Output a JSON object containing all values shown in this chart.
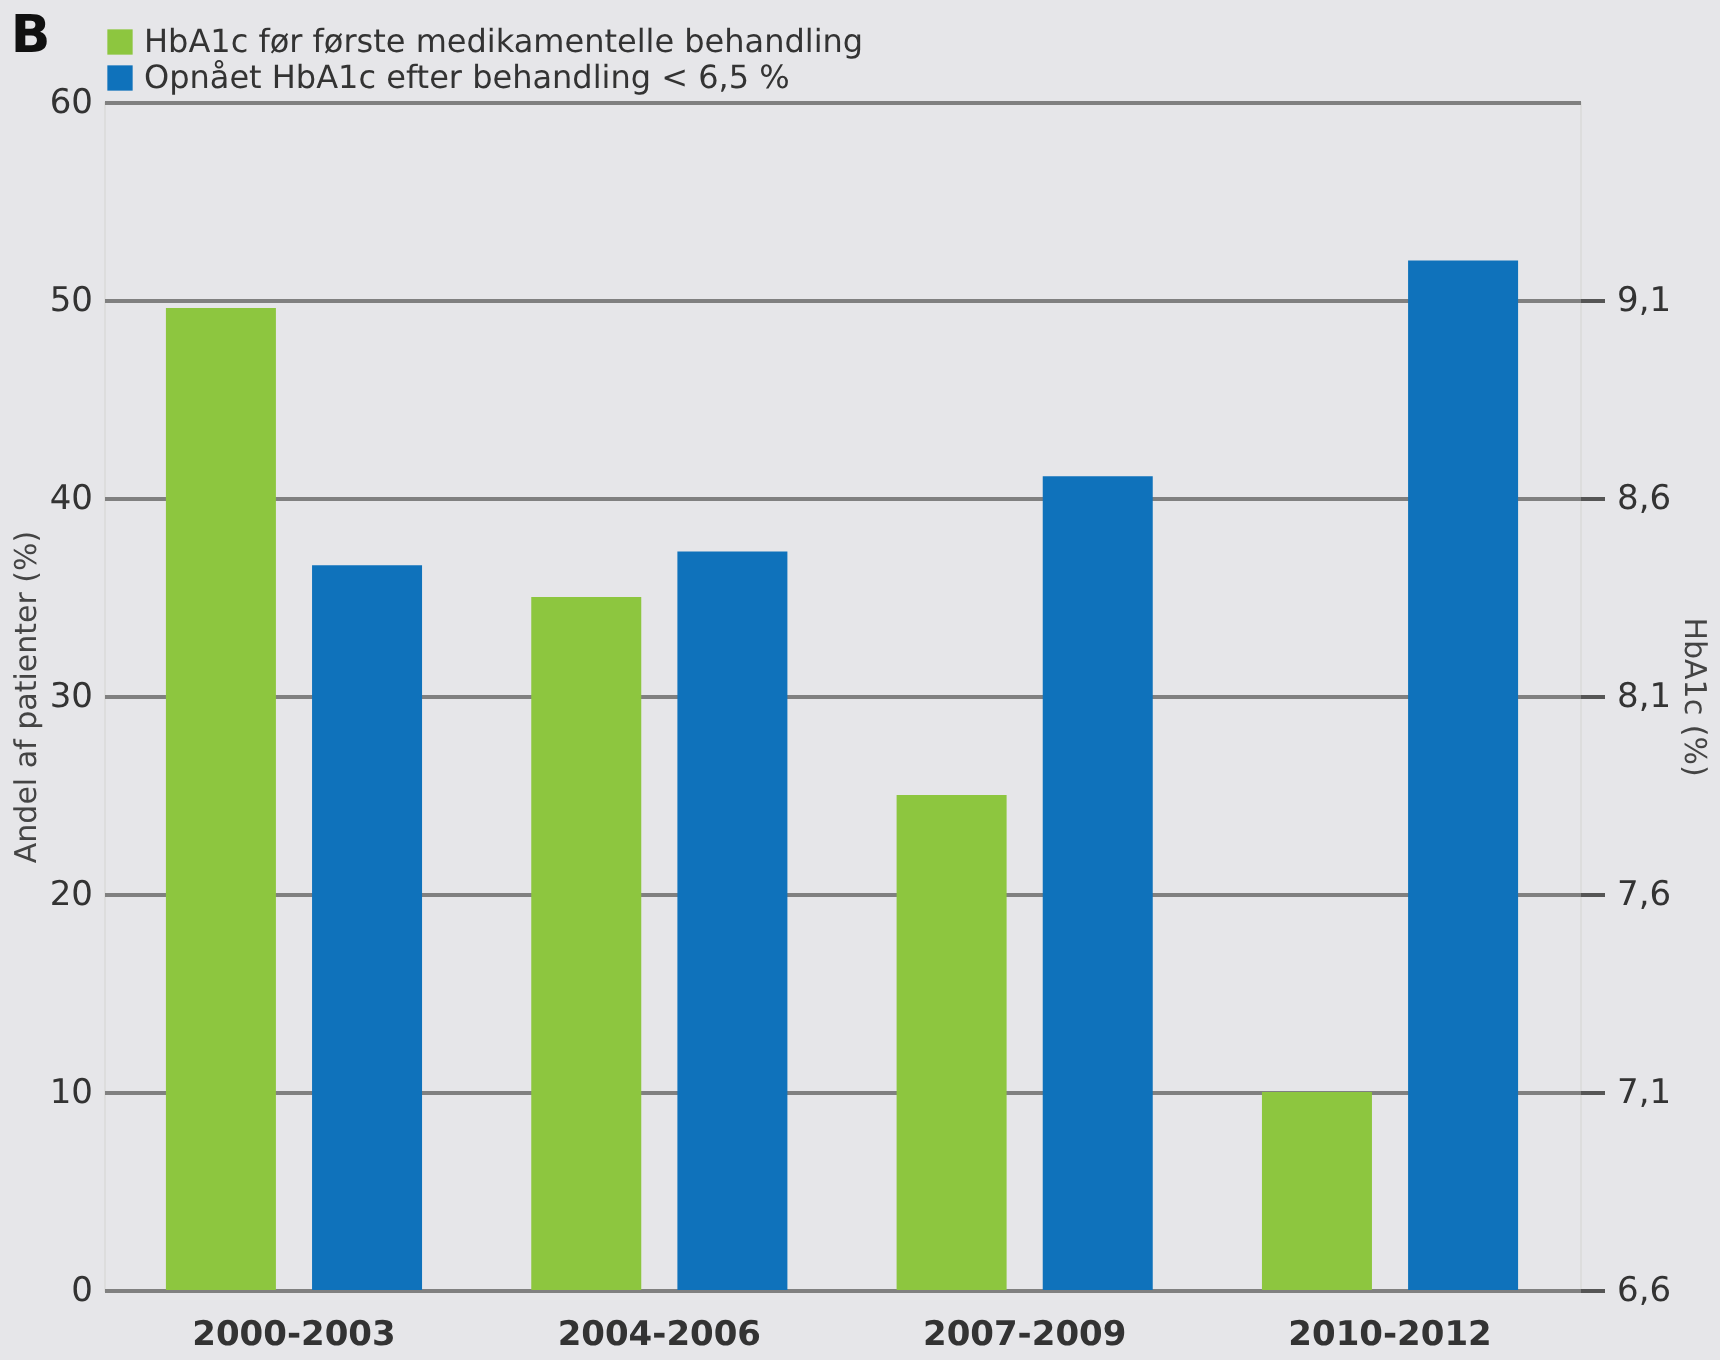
{
  "chart_data": {
    "type": "bar",
    "title": "B",
    "categories": [
      "2000-2003",
      "2004-2006",
      "2007-2009",
      "2010-2012"
    ],
    "series": [
      {
        "name": "HbA1c før første medikamentelle behandling",
        "color": "#8dc63f",
        "values": [
          9.08,
          8.35,
          7.85,
          7.1
        ],
        "axis": "y2"
      },
      {
        "name": "Opnået HbA1c efter behandling < 6,5 %",
        "color": "#0f72bb",
        "values": [
          36.6,
          37.3,
          41.1,
          52.0
        ]
      }
    ],
    "ylabel": "Andel af patienter (%)",
    "y2label": "HbA1c (%)",
    "ylim": [
      0,
      60
    ],
    "yticks": [
      0,
      10,
      20,
      30,
      40,
      50,
      60
    ],
    "y2lim": [
      6.6,
      9.6
    ],
    "y2ticks": [
      {
        "value": 6.6,
        "label": "6,6"
      },
      {
        "value": 7.1,
        "label": "7,1"
      },
      {
        "value": 7.6,
        "label": "7,6"
      },
      {
        "value": 8.1,
        "label": "8,1"
      },
      {
        "value": 8.6,
        "label": "8,6"
      },
      {
        "value": 9.1,
        "label": "9,1"
      }
    ],
    "grid": "y",
    "legend": "top"
  }
}
